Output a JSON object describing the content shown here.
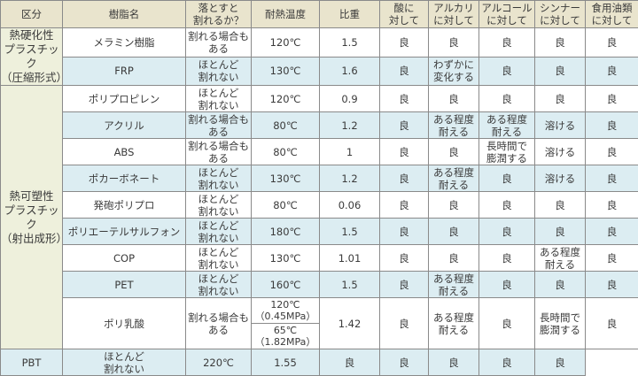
{
  "headers": [
    "区分",
    "樹脂名",
    "落とすと\n割れるか？",
    "耐熱温度",
    "比重",
    "酸に\n対して",
    "アルカリ\nに対して",
    "アルコール\nに対して",
    "シンナー\nに対して",
    "食用油類\nに対して"
  ],
  "categories": [
    {
      "label": "熱硬化性\nプラスチック\n（圧縮形式）",
      "rows": 2
    },
    {
      "label": "熱可塑性\nプラスチック\n（射出成形）",
      "rows": 10
    }
  ],
  "rows": [
    {
      "name": "メラミン樹脂",
      "drop": "割れる場合も\nある",
      "heat": "120℃",
      "sg": "1.5",
      "acid": "良",
      "alkali": "良",
      "alcohol": "良",
      "thinner": "良",
      "oil": "良"
    },
    {
      "name": "FRP",
      "drop": "ほとんど\n割れない",
      "heat": "130℃",
      "sg": "1.6",
      "acid": "良",
      "alkali": "わずかに\n変化する",
      "alcohol": "良",
      "thinner": "良",
      "oil": "良"
    },
    {
      "name": "ポリプロピレン",
      "drop": "ほとんど\n割れない",
      "heat": "120℃",
      "sg": "0.9",
      "acid": "良",
      "alkali": "良",
      "alcohol": "良",
      "thinner": "良",
      "oil": "良"
    },
    {
      "name": "アクリル",
      "drop": "割れる場合も\nある",
      "heat": "80℃",
      "sg": "1.2",
      "acid": "良",
      "alkali": "ある程度\n耐える",
      "alcohol": "ある程度\n耐える",
      "thinner": "溶ける",
      "oil": "良"
    },
    {
      "name": "ABS",
      "drop": "割れる場合も\nある",
      "heat": "80℃",
      "sg": "1",
      "acid": "良",
      "alkali": "良",
      "alcohol": "長時間で\n膨潤する",
      "thinner": "溶ける",
      "oil": "良"
    },
    {
      "name": "ポカーボネート",
      "drop": "ほとんど\n割れない",
      "heat": "130℃",
      "sg": "1.2",
      "acid": "良",
      "alkali": "ある程度\n耐える",
      "alcohol": "良",
      "thinner": "溶ける",
      "oil": "良"
    },
    {
      "name": "発砲ポリプロ",
      "drop": "ほとんど\n割れない",
      "heat": "80℃",
      "sg": "0.06",
      "acid": "良",
      "alkali": "良",
      "alcohol": "良",
      "thinner": "良",
      "oil": "良"
    },
    {
      "name": "ポリエーテルサルフォン",
      "drop": "ほとんど\n割れない",
      "heat": "180℃",
      "sg": "1.5",
      "acid": "良",
      "alkali": "良",
      "alcohol": "良",
      "thinner": "良",
      "oil": "良"
    },
    {
      "name": "COP",
      "drop": "ほとんど\n割れない",
      "heat": "130℃",
      "sg": "1.01",
      "acid": "良",
      "alkali": "良",
      "alcohol": "良",
      "thinner": "ある程度\n耐える",
      "oil": "良"
    },
    {
      "name": "PET",
      "drop": "ほとんど\n割れない",
      "heat": "160℃",
      "sg": "1.5",
      "acid": "良",
      "alkali": "ある程度\n耐える",
      "alcohol": "良",
      "thinner": "良",
      "oil": "良"
    },
    {
      "name": "ポリ乳酸",
      "drop": "割れる場合も\nある",
      "heat": "120℃\n（0.45MPa）",
      "heat2": "65℃\n（1.82MPa）",
      "sg": "1.42",
      "acid": "良",
      "alkali": "ある程度\n耐える",
      "alcohol": "良",
      "thinner": "長時間で\n膨潤する",
      "oil": "良"
    },
    {
      "name": "PBT",
      "drop": "ほとんど\n割れない",
      "heat": "220℃",
      "sg": "1.55",
      "acid": "良",
      "alkali": "良",
      "alcohol": "良",
      "thinner": "良",
      "oil": "良"
    }
  ],
  "colors": {
    "header_bg": "#e9e4cd",
    "category_bg": "#eef0dc",
    "alt_row_bg": "#dcedf2",
    "border": "#8a8a8a"
  }
}
